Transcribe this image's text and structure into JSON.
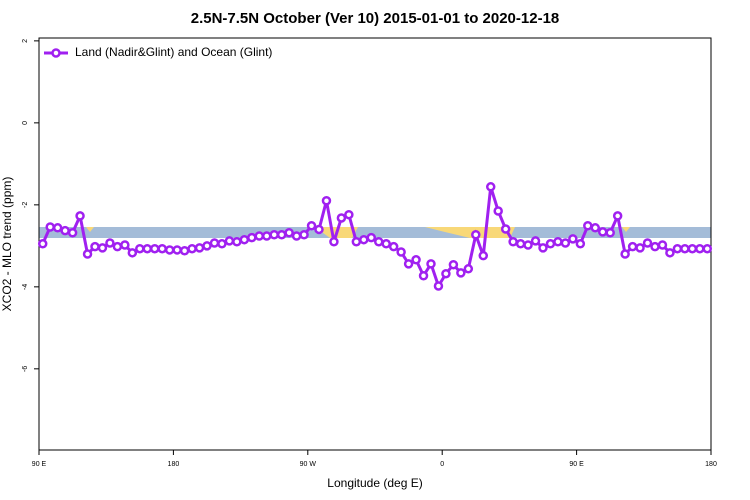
{
  "chart_data": {
    "type": "line",
    "title": "2.5N-7.5N October (Ver 10)   2015-01-01 to 2020-12-18",
    "xlabel": "Longitude (deg E)",
    "ylabel": "XCO2 - MLO trend (ppm)",
    "x": [
      92.5,
      97.5,
      102.5,
      107.5,
      112.5,
      117.5,
      122.5,
      127.5,
      132.5,
      137.5,
      142.5,
      147.5,
      152.5,
      157.5,
      162.5,
      167.5,
      172.5,
      177.5,
      182.5,
      187.5,
      192.5,
      197.5,
      202.5,
      207.5,
      212.5,
      217.5,
      222.5,
      227.5,
      232.5,
      237.5,
      242.5,
      247.5,
      252.5,
      257.5,
      262.5,
      267.5,
      272.5,
      277.5,
      282.5,
      287.5,
      292.5,
      297.5,
      302.5,
      307.5,
      312.5,
      317.5,
      322.5,
      327.5,
      332.5,
      337.5,
      342.5,
      347.5,
      352.5,
      357.5,
      362.5,
      367.5,
      372.5,
      377.5,
      382.5,
      387.5,
      392.5,
      397.5,
      402.5,
      407.5,
      412.5,
      417.5,
      422.5,
      427.5,
      432.5,
      437.5,
      442.5,
      447.5,
      452.5,
      457.5,
      462.5,
      467.5,
      472.5,
      477.5,
      482.5,
      487.5,
      492.5,
      497.5,
      502.5,
      507.5,
      512.5,
      517.5,
      522.5,
      527.5,
      532.5,
      537.5
    ],
    "series": [
      {
        "name": "Land (Nadir&Glint) and Ocean (Glint)",
        "color": "#a020f0",
        "values": [
          -2.95,
          -2.54,
          -2.56,
          -2.63,
          -2.68,
          -2.27,
          -3.2,
          -3.02,
          -3.05,
          -2.93,
          -3.02,
          -2.98,
          -3.17,
          -3.07,
          -3.07,
          -3.07,
          -3.07,
          -3.1,
          -3.1,
          -3.12,
          -3.07,
          -3.05,
          -3.0,
          -2.93,
          -2.95,
          -2.88,
          -2.9,
          -2.85,
          -2.8,
          -2.76,
          -2.76,
          -2.73,
          -2.73,
          -2.68,
          -2.76,
          -2.73,
          -2.51,
          -2.6,
          -1.9,
          -2.9,
          -2.32,
          -2.24,
          -2.9,
          -2.85,
          -2.8,
          -2.9,
          -2.95,
          -3.02,
          -3.15,
          -3.44,
          -3.34,
          -3.73,
          -3.44,
          -3.98,
          -3.68,
          -3.46,
          -3.66,
          -3.56,
          -2.73,
          -3.24,
          -1.56,
          -2.15,
          -2.59,
          -2.9,
          -2.95,
          -2.98,
          -2.88,
          -3.05,
          -2.95,
          -2.9,
          -2.93,
          -2.83,
          -2.95,
          -2.51,
          -2.56,
          -2.66,
          -2.68,
          -2.27,
          -3.2,
          -3.02,
          -3.05,
          -2.93,
          -3.02,
          -2.98,
          -3.17,
          -3.07,
          -3.07,
          -3.07,
          -3.07,
          -3.07
        ]
      }
    ],
    "xlim": [
      90,
      540
    ],
    "xticks": [
      {
        "value": 90,
        "label": "90 E"
      },
      180,
      {
        "value": 270,
        "label": "90 W"
      },
      {
        "value": 360,
        "label": "0"
      },
      {
        "value": 450,
        "label": "90 E"
      },
      {
        "value": 540,
        "label": "180"
      }
    ],
    "ylim": [
      -7.98,
      2.07
    ],
    "yticks": [
      2,
      0,
      -2,
      -4,
      -6
    ],
    "legend": "top-left"
  }
}
